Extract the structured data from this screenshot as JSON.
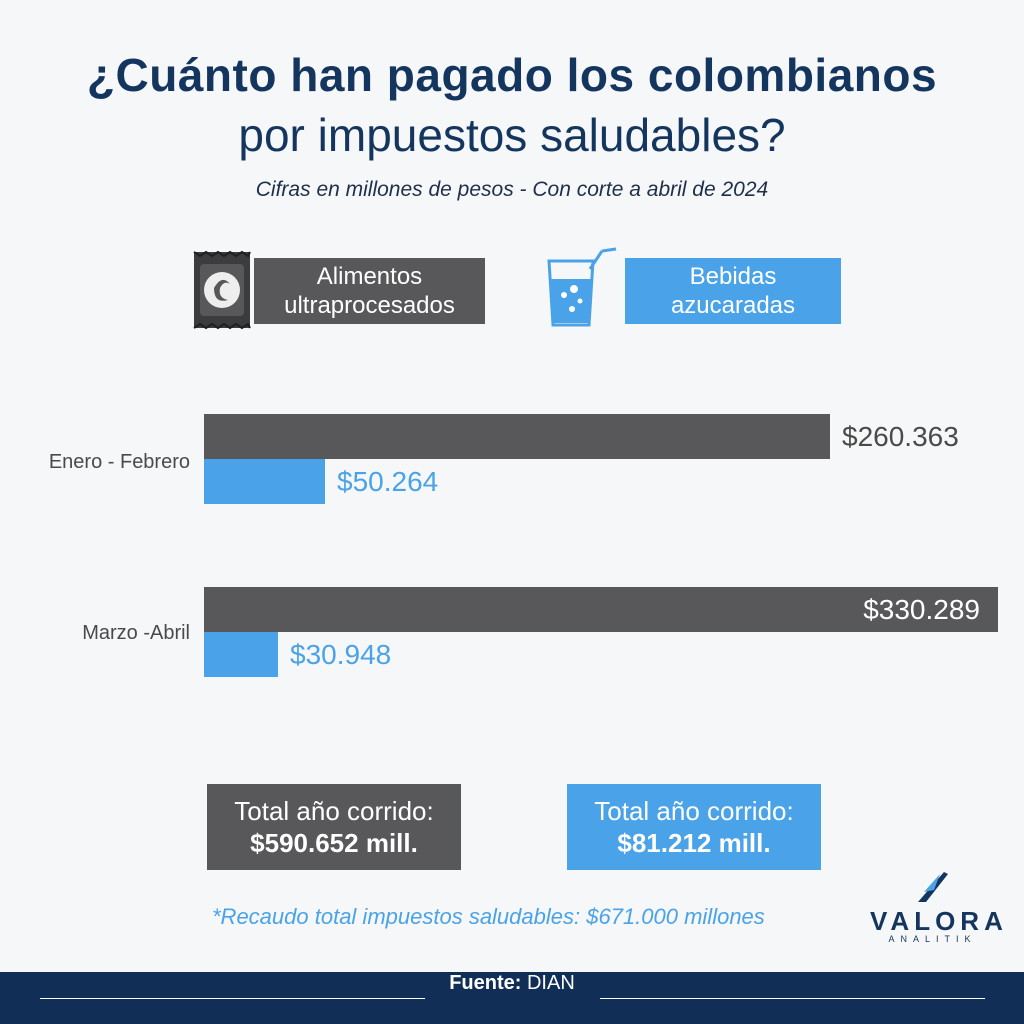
{
  "header": {
    "title_line1": "¿Cuánto han pagado los colombianos",
    "title_line2": "por impuestos saludables?",
    "subtitle": "Cifras en millones de pesos - Con corte a abril de 2024"
  },
  "legend": [
    {
      "label_line1": "Alimentos",
      "label_line2": "ultraprocesados",
      "icon": "snack-bag-icon"
    },
    {
      "label_line1": "Bebidas",
      "label_line2": "azucaradas",
      "icon": "drink-glass-icon"
    }
  ],
  "colors": {
    "alimentos": "#58585a",
    "bebidas": "#4aa3e8",
    "title": "#14365e",
    "footer": "#102e56"
  },
  "chart_data": {
    "type": "bar",
    "orientation": "horizontal",
    "categories": [
      "Enero - Febrero",
      "Marzo -Abril"
    ],
    "series": [
      {
        "name": "Alimentos ultraprocesados",
        "values": [
          260363,
          330289
        ],
        "labels": [
          "$260.363",
          "$330.289"
        ]
      },
      {
        "name": "Bebidas azucaradas",
        "values": [
          50264,
          30948
        ],
        "labels": [
          "$50.264",
          "$30.948"
        ]
      }
    ],
    "xlim": [
      0,
      330289
    ],
    "grid": false,
    "legend": "top"
  },
  "totals": [
    {
      "label": "Total año corrido:",
      "value": "$590.652 mill."
    },
    {
      "label": "Total año corrido:",
      "value": "$81.212 mill."
    }
  ],
  "note": "*Recaudo total impuestos saludables: $671.000 millones",
  "logo": {
    "name": "VALORA",
    "sub": "ANALITIK"
  },
  "footer": {
    "label": "Fuente:",
    "source": "DIAN"
  }
}
